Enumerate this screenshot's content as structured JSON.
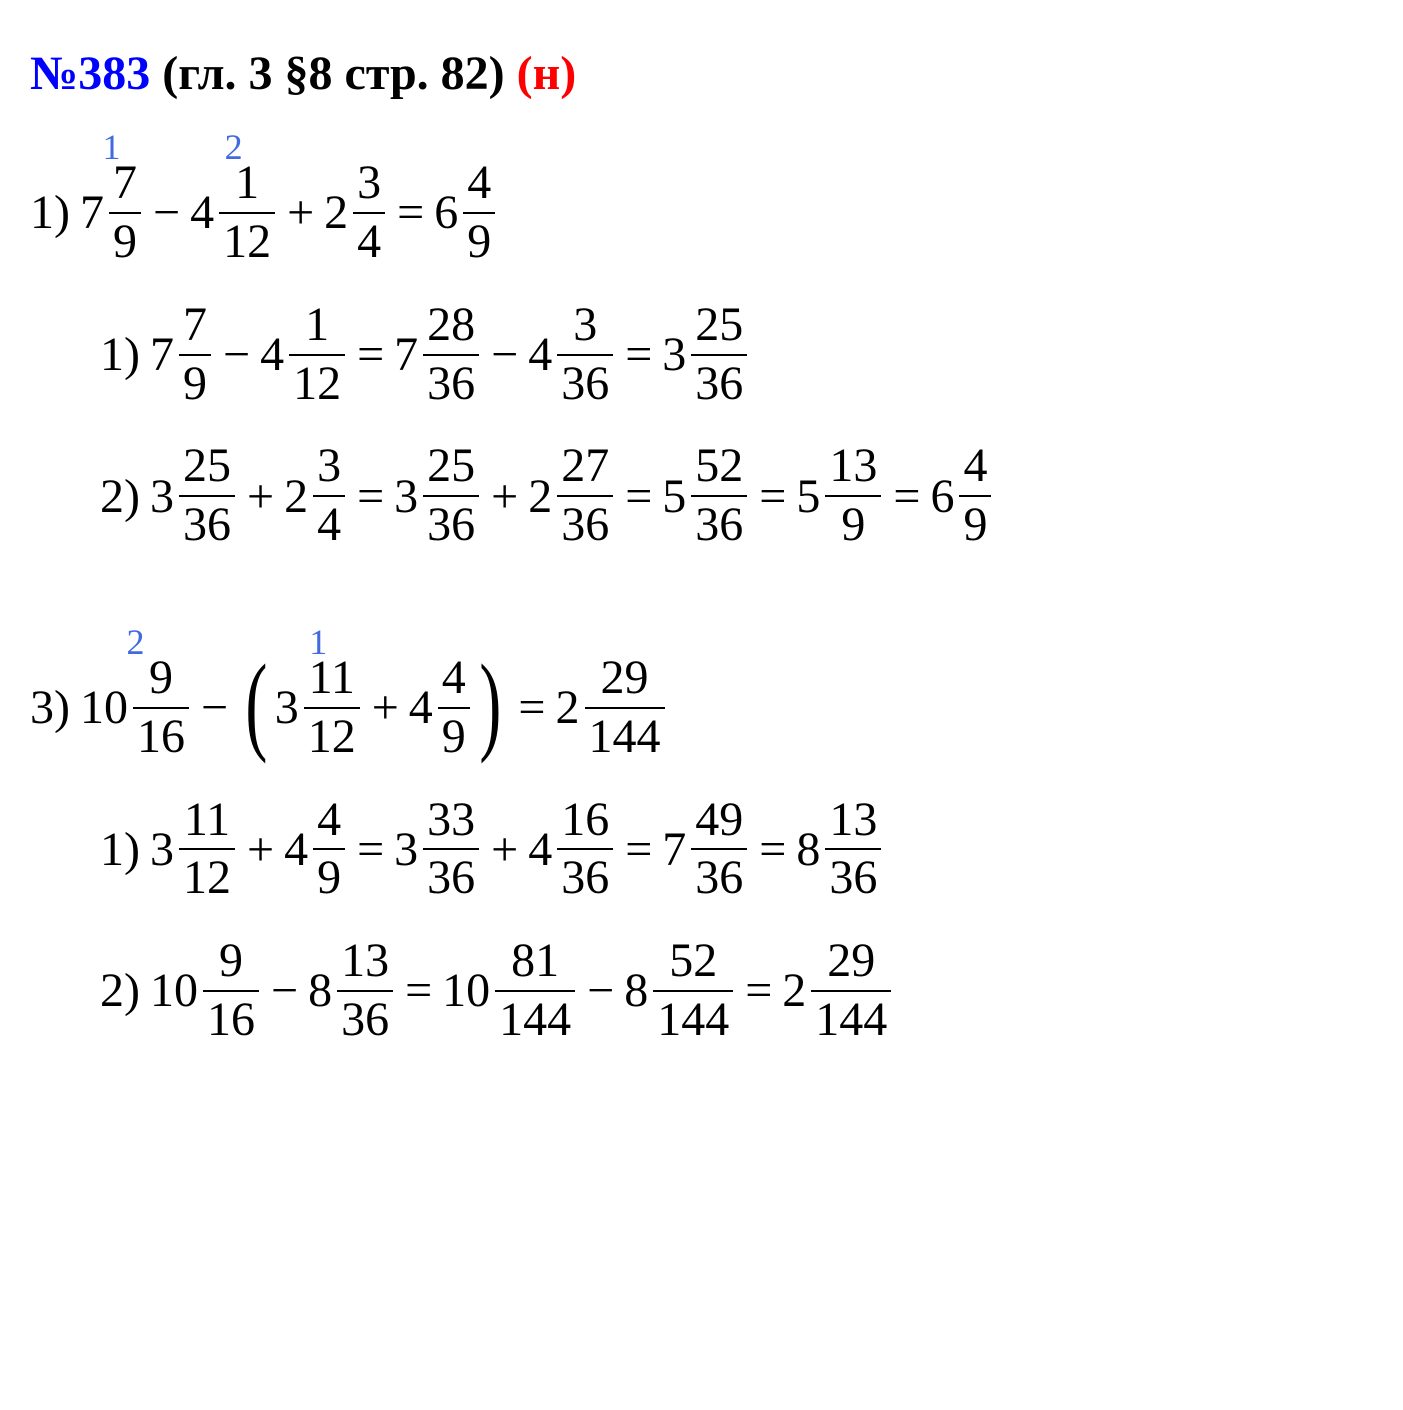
{
  "title": {
    "problem_number": "№383",
    "reference": "(гл. 3 §8 стр. 82)",
    "suffix": "(н)",
    "number_color": "#0000ff",
    "suffix_color": "#ff0000",
    "fontsize": 48,
    "fontweight": "bold"
  },
  "colors": {
    "text": "#000000",
    "order_label": "#4169e1",
    "background": "#ffffff"
  },
  "typography": {
    "base_fontsize": 48,
    "order_fontsize": 36,
    "font_family": "Times New Roman"
  },
  "problems": [
    {
      "label": "1)",
      "main": {
        "terms": [
          {
            "whole": "7",
            "num": "7",
            "den": "9",
            "order": "1"
          },
          {
            "op": "−"
          },
          {
            "whole": "4",
            "num": "1",
            "den": "12",
            "order": "2"
          },
          {
            "op": "+"
          },
          {
            "whole": "2",
            "num": "3",
            "den": "4"
          },
          {
            "op": "="
          },
          {
            "whole": "6",
            "num": "4",
            "den": "9"
          }
        ]
      },
      "steps": [
        {
          "label": "1)",
          "terms": [
            {
              "whole": "7",
              "num": "7",
              "den": "9"
            },
            {
              "op": "−"
            },
            {
              "whole": "4",
              "num": "1",
              "den": "12"
            },
            {
              "op": "="
            },
            {
              "whole": "7",
              "num": "28",
              "den": "36"
            },
            {
              "op": "−"
            },
            {
              "whole": "4",
              "num": "3",
              "den": "36"
            },
            {
              "op": "="
            },
            {
              "whole": "3",
              "num": "25",
              "den": "36"
            }
          ]
        },
        {
          "label": "2)",
          "terms": [
            {
              "whole": "3",
              "num": "25",
              "den": "36"
            },
            {
              "op": "+"
            },
            {
              "whole": "2",
              "num": "3",
              "den": "4"
            },
            {
              "op": "="
            },
            {
              "whole": "3",
              "num": "25",
              "den": "36"
            },
            {
              "op": "+"
            },
            {
              "whole": "2",
              "num": "27",
              "den": "36"
            },
            {
              "op": "="
            },
            {
              "whole": "5",
              "num": "52",
              "den": "36"
            },
            {
              "op": "="
            },
            {
              "whole": "5",
              "num": "13",
              "den": "9"
            },
            {
              "op": "="
            },
            {
              "whole": "6",
              "num": "4",
              "den": "9"
            }
          ]
        }
      ]
    },
    {
      "label": "3)",
      "main": {
        "terms": [
          {
            "whole": "10",
            "num": "9",
            "den": "16",
            "order": "2"
          },
          {
            "op": "−"
          },
          {
            "paren": "("
          },
          {
            "whole": "3",
            "num": "11",
            "den": "12",
            "order": "1"
          },
          {
            "op": "+"
          },
          {
            "whole": "4",
            "num": "4",
            "den": "9"
          },
          {
            "paren": ")"
          },
          {
            "op": "="
          },
          {
            "whole": "2",
            "num": "29",
            "den": "144"
          }
        ]
      },
      "steps": [
        {
          "label": "1)",
          "terms": [
            {
              "whole": "3",
              "num": "11",
              "den": "12"
            },
            {
              "op": "+"
            },
            {
              "whole": "4",
              "num": "4",
              "den": "9"
            },
            {
              "op": "="
            },
            {
              "whole": "3",
              "num": "33",
              "den": "36"
            },
            {
              "op": "+"
            },
            {
              "whole": "4",
              "num": "16",
              "den": "36"
            },
            {
              "op": "="
            },
            {
              "whole": "7",
              "num": "49",
              "den": "36"
            },
            {
              "op": "="
            },
            {
              "whole": "8",
              "num": "13",
              "den": "36"
            }
          ]
        },
        {
          "label": "2)",
          "terms": [
            {
              "whole": "10",
              "num": "9",
              "den": "16"
            },
            {
              "op": "−"
            },
            {
              "whole": "8",
              "num": "13",
              "den": "36"
            },
            {
              "op": "="
            },
            {
              "whole": "10",
              "num": "81",
              "den": "144"
            },
            {
              "op": "−"
            },
            {
              "whole": "8",
              "num": "52",
              "den": "144"
            },
            {
              "op": "="
            },
            {
              "whole": "2",
              "num": "29",
              "den": "144"
            }
          ]
        }
      ]
    }
  ]
}
